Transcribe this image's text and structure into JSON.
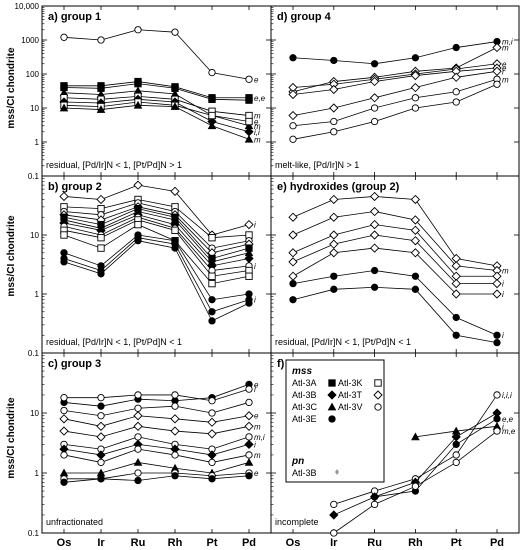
{
  "figure": {
    "ylabel_left": "mss/CI chondrite",
    "x_categories": [
      "Os",
      "Ir",
      "Ru",
      "Rh",
      "Pt",
      "Pd"
    ],
    "log_scale": true
  },
  "legend": {
    "mss_title": "mss",
    "pn_title": "pn",
    "entries": [
      {
        "label": "Atl-3A",
        "marker": "square-filled"
      },
      {
        "label": "Atl-3B",
        "marker": "diamond-filled"
      },
      {
        "label": "Atl-3C",
        "marker": "triangle-filled"
      },
      {
        "label": "Atl-3E",
        "marker": "circle-filled"
      },
      {
        "label": "Atl-3K",
        "marker": "square-open"
      },
      {
        "label": "Atl-3T",
        "marker": "diamond-open"
      },
      {
        "label": "Atl-3V",
        "marker": "circle-open"
      }
    ],
    "pn_entry": {
      "label": "Atl-3B",
      "marker": "diamond-small-gray"
    }
  },
  "chart_data": [
    {
      "id": "a",
      "type": "line",
      "title": "a) group 1",
      "subtitle": "residual, [Pd/Ir]N < 1, [Pt/Pd]N > 1",
      "categories": [
        "Os",
        "Ir",
        "Ru",
        "Rh",
        "Pt",
        "Pd"
      ],
      "ylim": [
        0.1,
        10000
      ],
      "yticks": [
        "0.1",
        "1",
        "10",
        "100",
        "1000",
        "10,000"
      ],
      "series": [
        {
          "marker": "circle-open",
          "values": [
            1200,
            1000,
            2000,
            1700,
            110,
            70
          ],
          "end_label": "e"
        },
        {
          "marker": "square-filled",
          "values": [
            45,
            45,
            60,
            42,
            20,
            20
          ],
          "end_label": "e,e"
        },
        {
          "marker": "square-filled",
          "values": [
            40,
            38,
            52,
            38,
            18,
            17
          ]
        },
        {
          "marker": "triangle-filled",
          "values": [
            28,
            25,
            32,
            26,
            6,
            3
          ],
          "end_label": "m"
        },
        {
          "marker": "square-open",
          "values": [
            20,
            18,
            22,
            18,
            8,
            6
          ],
          "end_label": "m"
        },
        {
          "marker": "diamond-filled",
          "values": [
            15,
            14,
            18,
            15,
            4,
            2
          ],
          "end_label": "i,i"
        },
        {
          "marker": "square-open",
          "values": [
            12,
            11,
            15,
            12,
            6,
            4
          ],
          "end_label": "e"
        },
        {
          "marker": "triangle-filled",
          "values": [
            10,
            9,
            12,
            11,
            3,
            1.2
          ],
          "end_label": "m"
        }
      ]
    },
    {
      "id": "b",
      "type": "line",
      "title": "b) group 2",
      "subtitle": "residual, [Pd/Ir]N < 1, [Pt/Pd]N < 1",
      "categories": [
        "Os",
        "Ir",
        "Ru",
        "Rh",
        "Pt",
        "Pd"
      ],
      "ylim": [
        0.1,
        100
      ],
      "yticks": [
        "0.1",
        "1",
        "10"
      ],
      "series": [
        {
          "marker": "diamond-open",
          "values": [
            45,
            40,
            70,
            55,
            10,
            15
          ],
          "end_label": "i"
        },
        {
          "marker": "square-open",
          "values": [
            30,
            28,
            40,
            30,
            9,
            10
          ]
        },
        {
          "marker": "circle-open",
          "values": [
            25,
            22,
            35,
            25,
            6,
            8
          ]
        },
        {
          "marker": "diamond-open",
          "values": [
            22,
            18,
            30,
            22,
            5,
            7
          ]
        },
        {
          "marker": "square-filled",
          "values": [
            20,
            15,
            28,
            20,
            4,
            6
          ]
        },
        {
          "marker": "triangle-filled",
          "values": [
            18,
            13,
            25,
            18,
            3.5,
            5
          ]
        },
        {
          "marker": "diamond-filled",
          "values": [
            16,
            12,
            22,
            15,
            3,
            4
          ]
        },
        {
          "marker": "circle-open",
          "values": [
            14,
            10,
            20,
            13,
            2.5,
            3
          ],
          "end_label": "i"
        },
        {
          "marker": "square-open",
          "values": [
            12,
            9,
            18,
            12,
            2,
            2.5
          ]
        },
        {
          "marker": "square-open",
          "values": [
            10,
            6,
            15,
            8,
            1.5,
            2
          ]
        },
        {
          "marker": "circle-filled",
          "values": [
            5,
            3,
            10,
            8,
            0.8,
            1
          ]
        },
        {
          "marker": "circle-filled",
          "values": [
            4,
            2.5,
            9,
            7,
            0.5,
            0.8
          ],
          "end_label": "i"
        },
        {
          "marker": "circle-filled",
          "values": [
            3.5,
            2.2,
            8,
            6,
            0.35,
            0.7
          ]
        }
      ]
    },
    {
      "id": "c",
      "type": "line",
      "title": "c) group 3",
      "subtitle": "unfractionated",
      "categories": [
        "Os",
        "Ir",
        "Ru",
        "Rh",
        "Pt",
        "Pd"
      ],
      "ylim": [
        0.1,
        100
      ],
      "yticks": [
        "0.1",
        "1",
        "10"
      ],
      "series": [
        {
          "marker": "circle-filled",
          "values": [
            15,
            13,
            17,
            16,
            18,
            30
          ],
          "end_label": "e"
        },
        {
          "marker": "circle-open",
          "values": [
            18,
            18,
            20,
            20,
            16,
            25
          ],
          "end_label": "i"
        },
        {
          "marker": "circle-open",
          "values": [
            11,
            9,
            12,
            13,
            10,
            15
          ]
        },
        {
          "marker": "diamond-open",
          "values": [
            8,
            6,
            9,
            8,
            7,
            9
          ],
          "end_label": "e"
        },
        {
          "marker": "diamond-open",
          "values": [
            5,
            4,
            6,
            5,
            4.5,
            6
          ],
          "end_label": "m"
        },
        {
          "marker": "circle-open",
          "values": [
            3,
            2.5,
            4,
            3,
            2.5,
            4
          ],
          "end_label": "m,i"
        },
        {
          "marker": "diamond-filled",
          "values": [
            2.5,
            2,
            3,
            2.5,
            2,
            3
          ],
          "end_label": "i"
        },
        {
          "marker": "circle-open",
          "values": [
            2,
            1.5,
            2.5,
            2,
            1.5,
            2
          ],
          "end_label": "m"
        },
        {
          "marker": "triangle-filled",
          "values": [
            1,
            1,
            1.5,
            1.2,
            1,
            1.5
          ]
        },
        {
          "marker": "circle-open",
          "values": [
            0.8,
            0.8,
            1,
            1,
            0.9,
            1
          ],
          "end_label": "e"
        },
        {
          "marker": "circle-filled",
          "values": [
            0.7,
            0.8,
            0.75,
            0.9,
            0.8,
            0.9
          ]
        }
      ]
    },
    {
      "id": "d",
      "type": "line",
      "title": "d) group 4",
      "subtitle": "melt-like, [Pd/Ir]N > 1",
      "categories": [
        "Os",
        "Ir",
        "Ru",
        "Rh",
        "Pt",
        "Pd"
      ],
      "ylim": [
        0.1,
        10000
      ],
      "series": [
        {
          "marker": "circle-filled",
          "values": [
            300,
            250,
            200,
            300,
            600,
            900
          ],
          "end_label": "m,i"
        },
        {
          "marker": "diamond-open",
          "values": [
            30,
            60,
            80,
            120,
            150,
            600
          ],
          "end_label": "m"
        },
        {
          "marker": "diamond-open",
          "values": [
            40,
            50,
            70,
            100,
            140,
            200
          ],
          "end_label": "e"
        },
        {
          "marker": "diamond-open",
          "values": [
            25,
            35,
            60,
            90,
            120,
            150
          ],
          "end_label": "e"
        },
        {
          "marker": "diamond-open",
          "values": [
            6,
            10,
            20,
            40,
            80,
            120
          ],
          "end_label": "i"
        },
        {
          "marker": "circle-open",
          "values": [
            3,
            4,
            10,
            20,
            30,
            70
          ],
          "end_label": "m"
        },
        {
          "marker": "circle-open",
          "values": [
            1.2,
            2,
            4,
            10,
            15,
            50
          ]
        }
      ]
    },
    {
      "id": "e",
      "type": "line",
      "title": "e) hydroxides (group 2)",
      "subtitle": "residual, [Pd/Ir]N < 1, [Pt/Pd]N < 1",
      "categories": [
        "Os",
        "Ir",
        "Ru",
        "Rh",
        "Pt",
        "Pd"
      ],
      "ylim": [
        0.1,
        100
      ],
      "series": [
        {
          "marker": "diamond-open",
          "values": [
            20,
            40,
            45,
            40,
            4,
            3
          ]
        },
        {
          "marker": "diamond-open",
          "values": [
            10,
            20,
            25,
            18,
            3,
            2.5
          ],
          "end_label": "m"
        },
        {
          "marker": "diamond-open",
          "values": [
            5,
            10,
            15,
            12,
            2,
            2
          ]
        },
        {
          "marker": "diamond-open",
          "values": [
            3.5,
            7,
            10,
            8,
            1.5,
            1.5
          ],
          "end_label": "i"
        },
        {
          "marker": "diamond-open",
          "values": [
            2,
            5,
            6,
            5,
            1,
            1
          ],
          "end_label": "i"
        },
        {
          "marker": "circle-filled",
          "values": [
            1.5,
            2,
            2.5,
            2,
            0.4,
            0.2
          ],
          "end_label": "i"
        },
        {
          "marker": "circle-filled",
          "values": [
            0.8,
            1.2,
            1.3,
            1.2,
            0.2,
            0.15
          ]
        }
      ]
    },
    {
      "id": "f",
      "type": "line",
      "title": "f) group 5",
      "subtitle": "incomplete",
      "categories": [
        "Os",
        "Ir",
        "Ru",
        "Rh",
        "Pt",
        "Pd"
      ],
      "ylim": [
        0.1,
        100
      ],
      "series": [
        {
          "marker": "circle-open",
          "values": [
            null,
            0.3,
            0.5,
            0.8,
            2,
            20
          ],
          "end_label": "i,i,i"
        },
        {
          "marker": "diamond-filled",
          "values": [
            null,
            0.2,
            0.4,
            0.7,
            4,
            10
          ]
        },
        {
          "marker": "circle-filled",
          "values": [
            null,
            null,
            0.4,
            0.5,
            3,
            8
          ],
          "end_label": "e,e"
        },
        {
          "marker": "triangle-filled",
          "values": [
            null,
            null,
            null,
            4,
            5,
            6
          ],
          "end_label": "i"
        },
        {
          "marker": "circle-open",
          "values": [
            null,
            0.1,
            0.3,
            0.6,
            1.5,
            5
          ],
          "end_label": "m,e"
        }
      ]
    }
  ]
}
